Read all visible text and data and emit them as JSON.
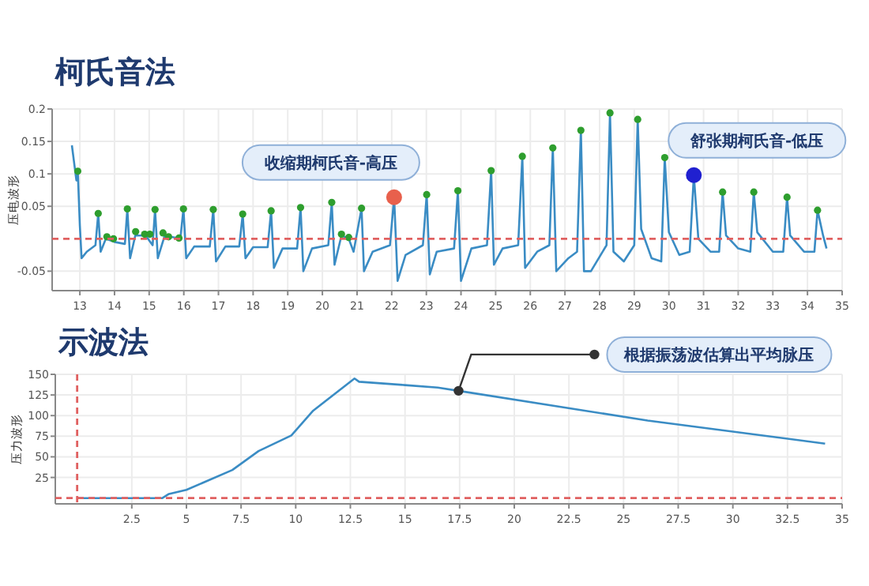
{
  "chart_data": [
    {
      "type": "line",
      "title": "柯氏音法",
      "ylabel": "压电波形",
      "xlim": [
        12.2,
        35
      ],
      "ylim": [
        -0.08,
        0.2
      ],
      "xticks": [
        13,
        14,
        15,
        16,
        17,
        18,
        19,
        20,
        21,
        22,
        23,
        24,
        25,
        26,
        27,
        28,
        29,
        30,
        31,
        32,
        33,
        34,
        35
      ],
      "yticks": [
        -0.05,
        0.05,
        0.1,
        0.15,
        0.2
      ],
      "grid": true,
      "line_style": "solid",
      "ref_lines": [
        {
          "axis": "y",
          "value": 0,
          "color": "#e06060",
          "line_style": "dashed"
        }
      ],
      "annotations": [
        {
          "text": "收缩期柯氏音-高压",
          "x": 22.07,
          "y": 0.064
        },
        {
          "text": "舒张期柯氏音-低压",
          "x": 30.72,
          "y": 0.098
        }
      ],
      "series": [
        {
          "color": "#3a8cc4",
          "x": [
            12.77,
            12.9,
            12.94,
            13.0,
            13.05,
            13.2,
            13.45,
            13.53,
            13.6,
            13.75,
            14.0,
            14.3,
            14.37,
            14.45,
            14.6,
            14.9,
            15.1,
            15.17,
            15.25,
            15.45,
            15.9,
            15.99,
            16.07,
            16.3,
            16.75,
            16.85,
            16.93,
            17.2,
            17.6,
            17.7,
            17.78,
            18.0,
            18.42,
            18.52,
            18.6,
            18.85,
            19.27,
            19.37,
            19.45,
            19.7,
            20.17,
            20.27,
            20.35,
            20.55,
            20.76,
            20.9,
            21.13,
            21.2,
            21.45,
            21.95,
            22.07,
            22.17,
            22.4,
            22.9,
            23.01,
            23.1,
            23.3,
            23.8,
            23.91,
            24.0,
            24.3,
            24.75,
            24.87,
            24.95,
            25.2,
            25.65,
            25.77,
            25.85,
            26.2,
            26.55,
            26.65,
            26.75,
            27.1,
            27.35,
            27.46,
            27.55,
            27.75,
            28.2,
            28.3,
            28.4,
            28.7,
            29.0,
            29.1,
            29.2,
            29.5,
            29.78,
            29.88,
            30.0,
            30.3,
            30.6,
            30.72,
            30.85,
            31.2,
            31.45,
            31.55,
            31.65,
            32.0,
            32.35,
            32.45,
            32.55,
            33.0,
            33.3,
            33.41,
            33.5,
            33.9,
            34.2,
            34.29,
            34.45,
            34.55
          ],
          "values": [
            0.144,
            0.09,
            0.104,
            0.02,
            -0.03,
            -0.02,
            -0.01,
            0.039,
            -0.02,
            0.0,
            -0.005,
            -0.008,
            0.046,
            -0.03,
            0.005,
            0.005,
            -0.01,
            0.045,
            -0.03,
            0.005,
            0.0,
            0.046,
            -0.03,
            -0.012,
            -0.012,
            0.045,
            -0.035,
            -0.012,
            -0.012,
            0.038,
            -0.03,
            -0.013,
            -0.013,
            0.043,
            -0.045,
            -0.015,
            -0.015,
            0.048,
            -0.05,
            -0.015,
            -0.01,
            0.056,
            -0.04,
            0.005,
            0.0,
            -0.02,
            0.047,
            -0.05,
            -0.02,
            -0.01,
            0.064,
            -0.065,
            -0.025,
            -0.01,
            0.068,
            -0.055,
            -0.02,
            -0.015,
            0.074,
            -0.065,
            -0.015,
            -0.01,
            0.105,
            -0.04,
            -0.015,
            -0.01,
            0.127,
            -0.045,
            -0.02,
            -0.01,
            0.14,
            -0.05,
            -0.03,
            -0.02,
            0.167,
            -0.05,
            -0.05,
            -0.01,
            0.194,
            -0.02,
            -0.035,
            -0.01,
            0.184,
            0.015,
            -0.03,
            -0.035,
            0.125,
            0.01,
            -0.025,
            -0.02,
            0.098,
            0.0,
            -0.02,
            -0.02,
            0.072,
            0.005,
            -0.015,
            -0.02,
            0.072,
            0.01,
            -0.02,
            -0.02,
            0.064,
            0.005,
            -0.02,
            -0.02,
            0.044,
            0.005,
            -0.015
          ]
        },
        {
          "type": "scatter",
          "color": "#2e9e2e",
          "marker": "circle",
          "x": [
            12.94,
            13.53,
            13.78,
            13.97,
            14.37,
            14.61,
            14.87,
            15.02,
            15.17,
            15.4,
            15.56,
            15.86,
            15.99,
            16.85,
            17.7,
            18.52,
            19.37,
            20.27,
            20.55,
            20.76,
            21.13,
            23.01,
            23.91,
            24.87,
            25.77,
            26.65,
            27.46,
            28.3,
            29.1,
            29.88,
            31.55,
            32.45,
            33.41,
            34.29
          ],
          "values": [
            0.104,
            0.039,
            0.003,
            0.0,
            0.046,
            0.011,
            0.007,
            0.007,
            0.045,
            0.009,
            0.003,
            0.001,
            0.046,
            0.045,
            0.038,
            0.043,
            0.048,
            0.056,
            0.007,
            0.002,
            0.047,
            0.068,
            0.074,
            0.105,
            0.127,
            0.14,
            0.167,
            0.194,
            0.184,
            0.125,
            0.072,
            0.072,
            0.064,
            0.044
          ]
        },
        {
          "type": "scatter",
          "color": "#e8604c",
          "marker": "circle",
          "x": [
            22.07
          ],
          "values": [
            0.064
          ]
        },
        {
          "type": "scatter",
          "color": "#2020d0",
          "marker": "circle",
          "x": [
            30.72
          ],
          "values": [
            0.098
          ]
        }
      ]
    },
    {
      "type": "line",
      "title": "示波法",
      "ylabel": "压力波形",
      "xlim": [
        -1,
        35
      ],
      "ylim": [
        -7,
        150
      ],
      "xticks": [
        2.5,
        5,
        7.5,
        10,
        12.5,
        15,
        17.5,
        20,
        22.5,
        25,
        27.5,
        30,
        32.5,
        35
      ],
      "yticks": [
        25,
        50,
        75,
        100,
        125,
        150
      ],
      "grid": true,
      "line_style": "solid",
      "ref_lines": [
        {
          "axis": "y",
          "value": 0,
          "color": "#e06060",
          "line_style": "dashed"
        },
        {
          "axis": "x",
          "value": 0,
          "color": "#e06060",
          "line_style": "dashed"
        }
      ],
      "annotations": [
        "根据振荡波估算出平均脉压"
      ],
      "series": [
        {
          "color": "#3a8cc4",
          "x": [
            0,
            3.9,
            4.2,
            5,
            7.1,
            8.3,
            9.8,
            10.8,
            12.69,
            12.9,
            15,
            16.5,
            17.45,
            26.1,
            34.22
          ],
          "values": [
            0,
            0,
            5,
            10,
            34,
            57,
            76,
            106,
            145,
            141,
            137,
            134,
            130,
            94,
            66
          ]
        }
      ]
    }
  ]
}
